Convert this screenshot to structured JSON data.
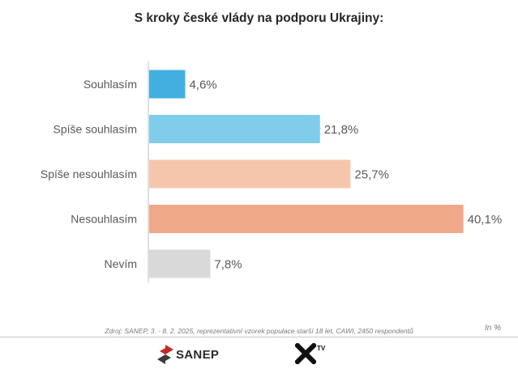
{
  "chart_data": {
    "type": "bar",
    "orientation": "horizontal",
    "title": "S kroky české vlády na podporu Ukrajiny:",
    "categories": [
      "Souhlasím",
      "Spíše souhlasím",
      "Spíše nesouhlasím",
      "Nesouhlasím",
      "Nevím"
    ],
    "values": [
      4.6,
      21.8,
      25.7,
      40.1,
      7.8
    ],
    "value_labels": [
      "4,6%",
      "21,8%",
      "25,7%",
      "40,1%",
      "7,8%"
    ],
    "colors": [
      "#41b0e0",
      "#7fcceb",
      "#f6c6ac",
      "#f0a988",
      "#d9d9d9"
    ],
    "xlim": [
      0,
      45
    ],
    "grid": false,
    "legend": "none"
  },
  "footer": {
    "source": "Zdroj: SANEP, 3. - 8. 2. 2025, reprezentativní vzorek populace starší 18 let, CAWI, 2450 respondentů",
    "unit": "In %",
    "logo_left_text": "SANEP",
    "logo_right_mark": "✖",
    "logo_right_sup": "TV"
  }
}
